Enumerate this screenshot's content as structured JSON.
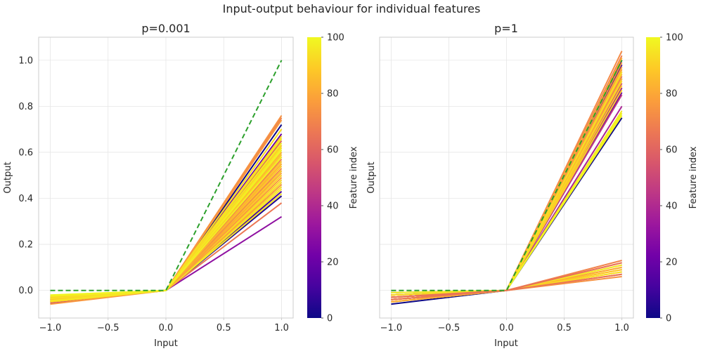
{
  "figure_title": "Input-output behaviour for individual features",
  "colors": {
    "reference_line": "#2ca02c",
    "colormap_stops": [
      "#0d0887",
      "#46039f",
      "#7201a8",
      "#9c179e",
      "#bd3786",
      "#d8576b",
      "#ed7953",
      "#fb9f3a",
      "#fdca26",
      "#f0f921"
    ]
  },
  "chart_data": [
    {
      "type": "line",
      "title": "p=0.001",
      "xlabel": "Input",
      "ylabel": "Output",
      "x": [
        -1.0,
        0.0,
        1.0
      ],
      "xlim": [
        -1.1,
        1.1
      ],
      "ylim": [
        -0.12,
        1.1
      ],
      "xticks": [
        -1.0,
        -0.5,
        0.0,
        0.5,
        1.0
      ],
      "xtick_labels": [
        "−1.0",
        "−0.5",
        "0.0",
        "0.5",
        "1.0"
      ],
      "yticks": [
        0.0,
        0.2,
        0.4,
        0.6,
        0.8,
        1.0
      ],
      "ytick_labels": [
        "0.0",
        "0.2",
        "0.4",
        "0.6",
        "0.8",
        "1.0"
      ],
      "grid": true,
      "reference_line": {
        "style": "dashed",
        "y": [
          0.0,
          0.0,
          1.0
        ]
      },
      "series_feature_index": [
        0,
        4,
        12,
        20,
        30,
        35,
        42,
        48,
        55,
        60,
        66,
        70,
        74,
        76,
        78,
        80,
        82,
        84,
        85,
        86,
        87,
        88,
        89,
        90,
        91,
        92,
        93,
        94,
        95,
        96,
        97,
        98,
        99,
        71,
        73,
        77,
        79,
        81,
        83,
        88,
        90,
        92,
        94,
        96,
        98
      ],
      "series_neg_value": [
        -0.05,
        -0.04,
        -0.045,
        -0.03,
        -0.05,
        -0.04,
        -0.05,
        -0.055,
        -0.05,
        -0.045,
        -0.04,
        -0.05,
        -0.045,
        -0.06,
        -0.05,
        -0.04,
        -0.035,
        -0.05,
        -0.045,
        -0.03,
        -0.04,
        -0.05,
        -0.035,
        -0.045,
        -0.03,
        -0.04,
        -0.05,
        -0.035,
        -0.045,
        -0.025,
        -0.04,
        -0.03,
        -0.02,
        -0.05,
        -0.04,
        -0.03,
        -0.05,
        -0.045,
        -0.035,
        -0.04,
        -0.03,
        -0.05,
        -0.035,
        -0.045,
        -0.025
      ],
      "series_pos_value": [
        0.72,
        0.41,
        0.43,
        0.68,
        0.32,
        0.46,
        0.52,
        0.58,
        0.6,
        0.65,
        0.38,
        0.75,
        0.76,
        0.74,
        0.7,
        0.66,
        0.63,
        0.62,
        0.6,
        0.58,
        0.56,
        0.55,
        0.54,
        0.52,
        0.5,
        0.48,
        0.47,
        0.45,
        0.44,
        0.42,
        0.66,
        0.64,
        0.61,
        0.57,
        0.53,
        0.49,
        0.46,
        0.51,
        0.55,
        0.59,
        0.63,
        0.67,
        0.7,
        0.62,
        0.58
      ],
      "colorbar": {
        "label": "Feature index",
        "min": 0,
        "max": 100,
        "ticks": [
          0,
          20,
          40,
          60,
          80,
          100
        ],
        "tick_labels": [
          "0",
          "20",
          "40",
          "60",
          "80",
          "100"
        ]
      }
    },
    {
      "type": "line",
      "title": "p=1",
      "xlabel": "Input",
      "ylabel": "Output",
      "x": [
        -1.0,
        0.0,
        1.0
      ],
      "xlim": [
        -1.1,
        1.1
      ],
      "ylim": [
        -0.12,
        1.1
      ],
      "xticks": [
        -1.0,
        -0.5,
        0.0,
        0.5,
        1.0
      ],
      "xtick_labels": [
        "−1.0",
        "−0.5",
        "0.0",
        "0.5",
        "1.0"
      ],
      "yticks": [
        0.0,
        0.2,
        0.4,
        0.6,
        0.8,
        1.0
      ],
      "grid": true,
      "reference_line": {
        "style": "dashed",
        "y": [
          0.0,
          0.0,
          1.0
        ]
      },
      "series_feature_index": [
        0,
        3,
        10,
        18,
        25,
        30,
        38,
        45,
        52,
        58,
        62,
        68,
        72,
        75,
        78,
        80,
        82,
        84,
        86,
        88,
        90,
        92,
        94,
        96,
        98,
        99,
        77,
        85,
        91,
        95,
        50,
        60,
        70,
        74,
        81,
        87,
        93,
        97,
        64,
        66
      ],
      "series_neg_value": [
        -0.06,
        -0.01,
        -0.02,
        -0.03,
        -0.02,
        -0.04,
        -0.03,
        -0.05,
        -0.02,
        -0.03,
        -0.04,
        -0.02,
        -0.03,
        -0.05,
        -0.04,
        -0.02,
        -0.03,
        -0.05,
        -0.04,
        -0.02,
        -0.03,
        -0.04,
        -0.05,
        -0.02,
        -0.01,
        -0.02,
        -0.03,
        -0.04,
        -0.02,
        -0.03,
        -0.04,
        -0.03,
        -0.02,
        -0.04,
        -0.05,
        -0.03,
        -0.02,
        -0.01,
        -0.03,
        -0.04
      ],
      "series_pos_value": [
        0.75,
        1.0,
        0.98,
        0.86,
        0.92,
        0.88,
        0.8,
        0.85,
        0.9,
        0.95,
        0.93,
        1.02,
        1.04,
        0.99,
        0.97,
        0.96,
        1.01,
        0.94,
        0.92,
        0.89,
        0.87,
        0.91,
        0.95,
        0.78,
        0.76,
        0.77,
        0.12,
        0.1,
        0.09,
        0.08,
        0.07,
        0.11,
        0.13,
        0.06,
        0.1,
        0.09,
        0.08,
        0.11,
        0.12,
        0.07
      ],
      "colorbar": {
        "label": "Feature index",
        "min": 0,
        "max": 100,
        "ticks": [
          0,
          20,
          40,
          60,
          80,
          100
        ],
        "tick_labels": [
          "0",
          "20",
          "40",
          "60",
          "80",
          "100"
        ]
      }
    }
  ]
}
